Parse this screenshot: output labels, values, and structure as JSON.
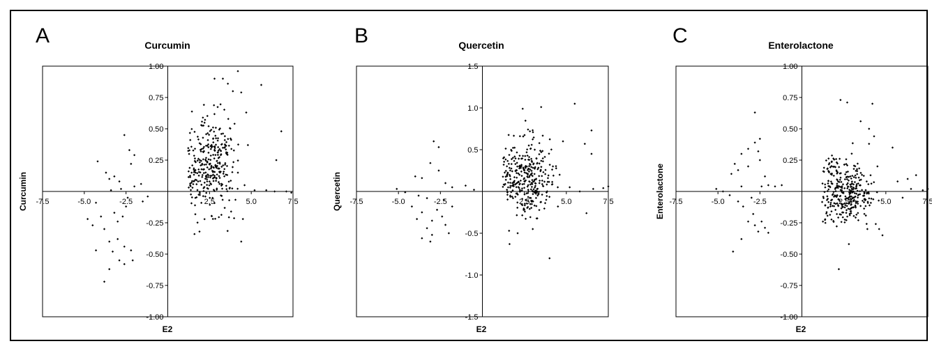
{
  "figure": {
    "panels": [
      {
        "letter": "A"
      },
      {
        "letter": "B"
      },
      {
        "letter": "C"
      }
    ]
  },
  "colors": {
    "points": "#000000",
    "axes": "#000000",
    "background": "#ffffff"
  },
  "chart_data": [
    {
      "type": "scatter",
      "title": "Curcumin",
      "xlabel": "E2",
      "ylabel": "Curcumin",
      "xlim": [
        -7.5,
        7.5
      ],
      "ylim": [
        -1.0,
        1.0
      ],
      "xticks": [
        "-7.5",
        "-5.0",
        "-2.5",
        "2.5",
        "5.0",
        "7.5"
      ],
      "xtick_values": [
        -7.5,
        -5.0,
        -2.5,
        2.5,
        5.0,
        7.5
      ],
      "yticks": [
        "1.00",
        "0.75",
        "0.50",
        "0.25",
        "-0.25",
        "-0.50",
        "-0.75",
        "-1.00"
      ],
      "ytick_values": [
        1.0,
        0.75,
        0.5,
        0.25,
        -0.25,
        -0.5,
        -0.75,
        -1.0
      ],
      "grid": false,
      "cluster_points": [
        [
          -4.2,
          0.24
        ],
        [
          -3.7,
          0.15
        ],
        [
          -3.5,
          0.1
        ],
        [
          -3.2,
          0.12
        ],
        [
          -2.9,
          0.08
        ],
        [
          -2.6,
          0.45
        ],
        [
          -2.3,
          0.33
        ],
        [
          -2.0,
          0.29
        ],
        [
          -2.2,
          0.22
        ],
        [
          -3.4,
          0.01
        ],
        [
          -2.8,
          0.02
        ],
        [
          -2.0,
          0.04
        ],
        [
          -1.6,
          0.06
        ],
        [
          -1.2,
          -0.04
        ],
        [
          -1.5,
          -0.08
        ],
        [
          -2.4,
          -0.05
        ],
        [
          -4.3,
          -0.09
        ],
        [
          -4.0,
          -0.2
        ],
        [
          -4.8,
          -0.22
        ],
        [
          -4.5,
          -0.27
        ],
        [
          -3.8,
          -0.3
        ],
        [
          -3.2,
          -0.17
        ],
        [
          -2.7,
          -0.2
        ],
        [
          -2.5,
          -0.12
        ],
        [
          -3.5,
          -0.4
        ],
        [
          -3.0,
          -0.38
        ],
        [
          -2.6,
          -0.44
        ],
        [
          -2.2,
          -0.47
        ],
        [
          -3.3,
          -0.48
        ],
        [
          -2.9,
          -0.55
        ],
        [
          -2.1,
          -0.55
        ],
        [
          -2.6,
          -0.58
        ],
        [
          -3.5,
          -0.62
        ],
        [
          -3.8,
          -0.72
        ],
        [
          -4.3,
          -0.47
        ],
        [
          -3.0,
          -0.24
        ],
        [
          1.6,
          -0.34
        ],
        [
          1.9,
          -0.32
        ],
        [
          4.4,
          -0.4
        ],
        [
          4.5,
          -0.22
        ],
        [
          2.8,
          0.9
        ],
        [
          3.3,
          0.9
        ],
        [
          4.2,
          0.96
        ],
        [
          3.6,
          0.86
        ],
        [
          3.9,
          0.8
        ],
        [
          4.4,
          0.79
        ],
        [
          5.6,
          0.85
        ],
        [
          6.8,
          0.48
        ],
        [
          6.5,
          0.25
        ],
        [
          4.7,
          0.63
        ],
        [
          4.8,
          0.37
        ],
        [
          4.0,
          0.54
        ],
        [
          4.2,
          0.15
        ],
        [
          4.6,
          0.05
        ],
        [
          5.2,
          0.01
        ],
        [
          5.9,
          0.01
        ],
        [
          6.4,
          0.0
        ],
        [
          7.1,
          0.0
        ],
        [
          7.4,
          -0.01
        ]
      ]
    },
    {
      "type": "scatter",
      "title": "Quercetin",
      "xlabel": "E2",
      "ylabel": "Quercetin",
      "xlim": [
        -7.5,
        7.5
      ],
      "ylim": [
        -1.5,
        1.5
      ],
      "xticks": [
        "-7.5",
        "-5.0",
        "-2.5",
        "2.5",
        "5.0",
        "7.5"
      ],
      "xtick_values": [
        -7.5,
        -5.0,
        -2.5,
        2.5,
        5.0,
        7.5
      ],
      "yticks": [
        "1.5",
        "1.0",
        "0.5",
        "-0.5",
        "-1.0",
        "-1.5"
      ],
      "ytick_values": [
        1.5,
        1.0,
        0.5,
        -0.5,
        -1.0,
        -1.5
      ],
      "grid": false,
      "cluster_points": [
        [
          -2.9,
          0.6
        ],
        [
          -2.6,
          0.53
        ],
        [
          -3.1,
          0.34
        ],
        [
          -2.6,
          0.25
        ],
        [
          -4.0,
          0.18
        ],
        [
          -3.6,
          0.16
        ],
        [
          -2.2,
          0.1
        ],
        [
          -1.8,
          0.05
        ],
        [
          -1.0,
          0.07
        ],
        [
          -0.5,
          0.02
        ],
        [
          -5.1,
          0.03
        ],
        [
          -4.6,
          -0.01
        ],
        [
          -3.8,
          -0.05
        ],
        [
          -3.3,
          -0.08
        ],
        [
          -2.3,
          -0.1
        ],
        [
          -1.8,
          -0.18
        ],
        [
          -4.2,
          -0.18
        ],
        [
          -3.6,
          -0.25
        ],
        [
          -3.9,
          -0.33
        ],
        [
          -3.0,
          -0.35
        ],
        [
          -2.4,
          -0.3
        ],
        [
          -3.3,
          -0.44
        ],
        [
          -3.0,
          -0.52
        ],
        [
          -3.6,
          -0.56
        ],
        [
          -3.1,
          -0.6
        ],
        [
          -2.0,
          -0.5
        ],
        [
          -2.7,
          -0.22
        ],
        [
          -2.2,
          -0.4
        ],
        [
          5.5,
          1.05
        ],
        [
          3.5,
          1.01
        ],
        [
          2.4,
          0.99
        ],
        [
          6.5,
          0.73
        ],
        [
          6.1,
          0.57
        ],
        [
          6.5,
          0.45
        ],
        [
          4.8,
          0.6
        ],
        [
          4.2,
          0.3
        ],
        [
          4.6,
          0.2
        ],
        [
          5.2,
          0.05
        ],
        [
          5.8,
          0.0
        ],
        [
          6.6,
          0.03
        ],
        [
          7.2,
          0.04
        ],
        [
          7.5,
          0.06
        ],
        [
          4.0,
          -0.8
        ],
        [
          3.0,
          -0.45
        ],
        [
          2.1,
          -0.5
        ],
        [
          6.2,
          -0.26
        ],
        [
          4.5,
          -0.18
        ],
        [
          3.8,
          -0.1
        ]
      ]
    },
    {
      "type": "scatter",
      "title": "Enterolactone",
      "xlabel": "E2",
      "ylabel": "Enterolactone",
      "xlim": [
        -7.5,
        7.5
      ],
      "ylim": [
        -1.0,
        1.0
      ],
      "xticks": [
        "-7.5",
        "-5.0",
        "-2.5",
        "2.5",
        "5.0",
        "7.5"
      ],
      "xtick_values": [
        -7.5,
        -5.0,
        -2.5,
        2.5,
        5.0,
        7.5
      ],
      "yticks": [
        "1.00",
        "0.75",
        "0.50",
        "0.25",
        "-0.25",
        "-0.50",
        "-0.75",
        "-1.00"
      ],
      "ytick_values": [
        1.0,
        0.75,
        0.5,
        0.25,
        -0.25,
        -0.5,
        -0.75,
        -1.0
      ],
      "grid": false,
      "cluster_points": [
        [
          -2.8,
          0.63
        ],
        [
          -2.5,
          0.42
        ],
        [
          -2.8,
          0.39
        ],
        [
          -3.2,
          0.34
        ],
        [
          -2.6,
          0.32
        ],
        [
          -3.6,
          0.3
        ],
        [
          -2.5,
          0.25
        ],
        [
          -4.0,
          0.22
        ],
        [
          -3.8,
          0.17
        ],
        [
          -4.2,
          0.14
        ],
        [
          -3.2,
          0.2
        ],
        [
          -2.2,
          0.12
        ],
        [
          -2.0,
          0.05
        ],
        [
          -1.6,
          0.04
        ],
        [
          -1.2,
          0.05
        ],
        [
          -2.4,
          0.04
        ],
        [
          -3.6,
          0.04
        ],
        [
          -5.1,
          0.02
        ],
        [
          -4.7,
          0.0
        ],
        [
          -4.3,
          -0.03
        ],
        [
          -3.8,
          -0.08
        ],
        [
          -3.5,
          -0.12
        ],
        [
          -2.9,
          -0.18
        ],
        [
          -2.4,
          -0.24
        ],
        [
          -2.8,
          -0.27
        ],
        [
          -2.2,
          -0.29
        ],
        [
          -3.2,
          -0.24
        ],
        [
          -2.6,
          -0.32
        ],
        [
          -3.6,
          -0.38
        ],
        [
          -4.1,
          -0.48
        ],
        [
          -2.0,
          -0.33
        ],
        [
          -3.0,
          -0.05
        ],
        [
          2.3,
          0.73
        ],
        [
          2.7,
          0.71
        ],
        [
          4.2,
          0.7
        ],
        [
          3.5,
          0.56
        ],
        [
          4.0,
          0.5
        ],
        [
          4.3,
          0.44
        ],
        [
          5.4,
          0.35
        ],
        [
          4.0,
          0.38
        ],
        [
          4.5,
          0.2
        ],
        [
          5.7,
          0.08
        ],
        [
          6.3,
          0.1
        ],
        [
          6.8,
          0.13
        ],
        [
          7.2,
          0.01
        ],
        [
          7.5,
          0.02
        ],
        [
          6.5,
          0.02
        ],
        [
          6.0,
          -0.05
        ],
        [
          4.6,
          -0.3
        ],
        [
          4.4,
          -0.26
        ],
        [
          4.8,
          -0.35
        ],
        [
          2.2,
          -0.62
        ],
        [
          2.8,
          -0.42
        ],
        [
          3.9,
          -0.3
        ]
      ]
    }
  ]
}
